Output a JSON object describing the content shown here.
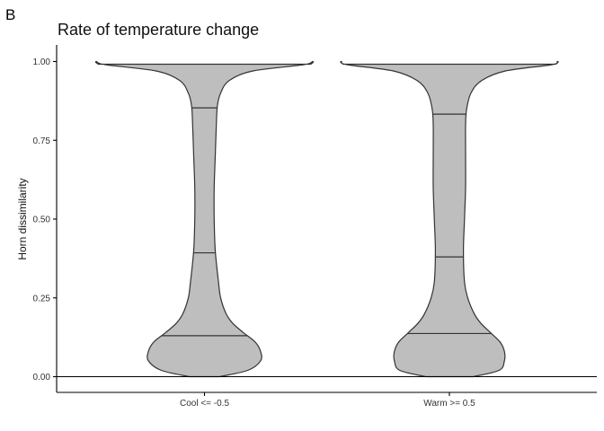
{
  "panel_tag": "B",
  "chart_data": {
    "type": "violin",
    "title": "Rate of temperature change",
    "xlabel": "",
    "ylabel": "Horn dissimilarity",
    "ylim": [
      0,
      1
    ],
    "y_ticks": [
      "0.00",
      "0.25",
      "0.50",
      "0.75",
      "1.00"
    ],
    "y_tick_values": [
      0,
      0.25,
      0.5,
      0.75,
      1.0
    ],
    "categories": [
      "Cool <= -0.5",
      "Warm >= 0.5"
    ],
    "reference_line_y": 0,
    "fill_color": "#bebebe",
    "violins": [
      {
        "category": "Cool <= -0.5",
        "quantiles": [
          0.13,
          0.393,
          0.853
        ],
        "density_profile": [
          [
            0.0,
            0.14
          ],
          [
            0.02,
            0.4
          ],
          [
            0.05,
            0.52
          ],
          [
            0.08,
            0.52
          ],
          [
            0.11,
            0.47
          ],
          [
            0.14,
            0.36
          ],
          [
            0.17,
            0.26
          ],
          [
            0.2,
            0.2
          ],
          [
            0.25,
            0.15
          ],
          [
            0.3,
            0.13
          ],
          [
            0.4,
            0.1
          ],
          [
            0.5,
            0.09
          ],
          [
            0.6,
            0.09
          ],
          [
            0.7,
            0.1
          ],
          [
            0.8,
            0.11
          ],
          [
            0.86,
            0.12
          ],
          [
            0.9,
            0.15
          ],
          [
            0.94,
            0.23
          ],
          [
            0.97,
            0.45
          ],
          [
            0.99,
            0.92
          ],
          [
            1.0,
            1.0
          ]
        ]
      },
      {
        "category": "Warm >= 0.5",
        "quantiles": [
          0.137,
          0.38,
          0.833
        ],
        "density_profile": [
          [
            0.0,
            0.22
          ],
          [
            0.02,
            0.46
          ],
          [
            0.05,
            0.51
          ],
          [
            0.08,
            0.51
          ],
          [
            0.11,
            0.47
          ],
          [
            0.14,
            0.38
          ],
          [
            0.17,
            0.29
          ],
          [
            0.2,
            0.23
          ],
          [
            0.25,
            0.17
          ],
          [
            0.3,
            0.14
          ],
          [
            0.4,
            0.13
          ],
          [
            0.5,
            0.14
          ],
          [
            0.6,
            0.15
          ],
          [
            0.7,
            0.15
          ],
          [
            0.8,
            0.15
          ],
          [
            0.85,
            0.16
          ],
          [
            0.9,
            0.2
          ],
          [
            0.94,
            0.3
          ],
          [
            0.97,
            0.52
          ],
          [
            0.99,
            0.95
          ],
          [
            1.0,
            1.0
          ]
        ]
      }
    ]
  }
}
